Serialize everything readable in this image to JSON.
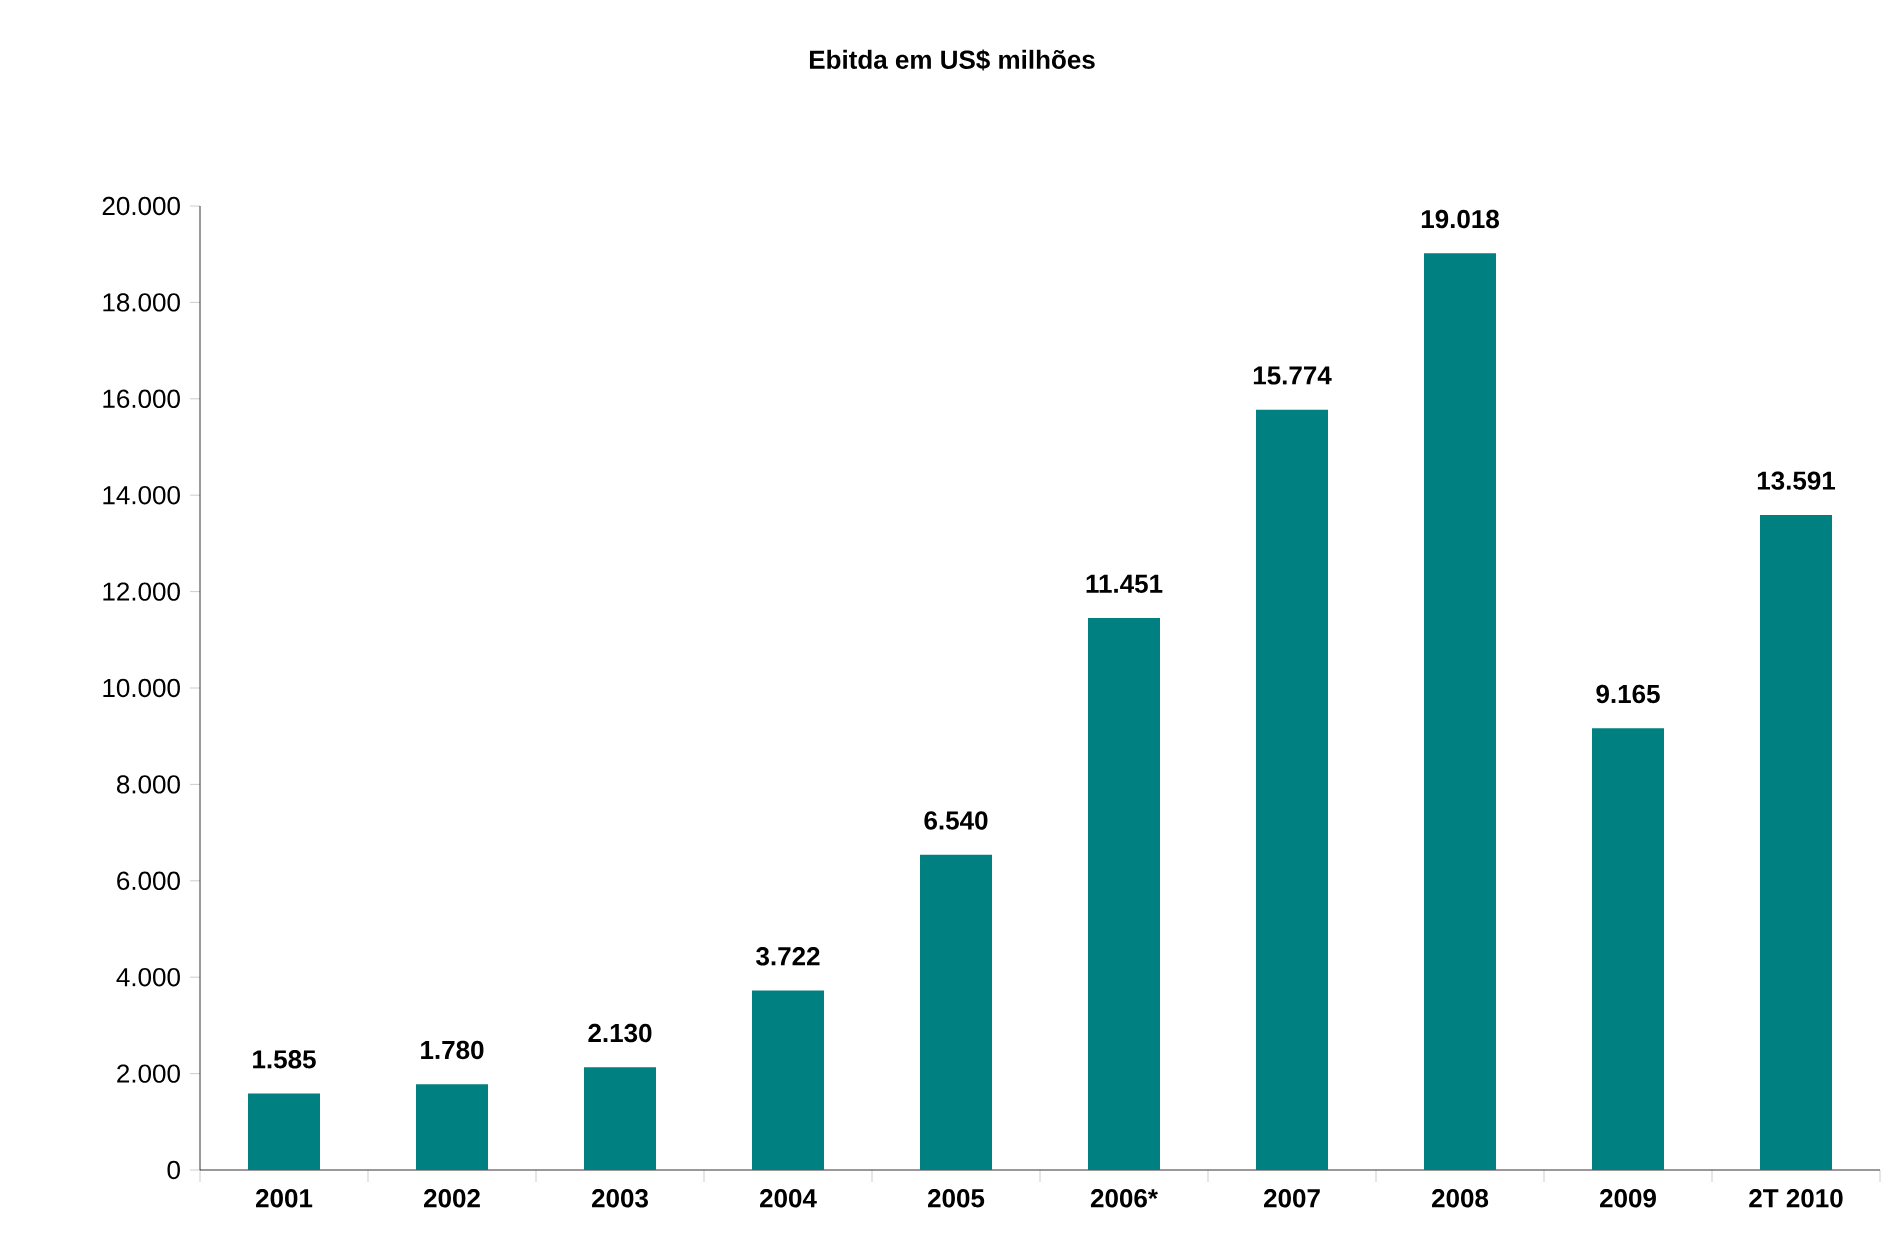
{
  "chart_data": {
    "type": "bar",
    "title": "Ebitda em US$ milhões",
    "categories": [
      "2001",
      "2002",
      "2003",
      "2004",
      "2005",
      "2006*",
      "2007",
      "2008",
      "2009",
      "2T 2010"
    ],
    "values": [
      1585,
      1780,
      2130,
      3722,
      6540,
      11451,
      15774,
      19018,
      9165,
      13591
    ],
    "value_labels": [
      "1.585",
      "1.780",
      "2.130",
      "3.722",
      "6.540",
      "11.451",
      "15.774",
      "19.018",
      "9.165",
      "13.591"
    ],
    "color": "#008080",
    "ylim": [
      0,
      20000
    ],
    "yticks": [
      {
        "value": 0,
        "label": "0"
      },
      {
        "value": 2000,
        "label": "2.000"
      },
      {
        "value": 4000,
        "label": "4.000"
      },
      {
        "value": 6000,
        "label": "6.000"
      },
      {
        "value": 8000,
        "label": "8.000"
      },
      {
        "value": 10000,
        "label": "10.000"
      },
      {
        "value": 12000,
        "label": "12.000"
      },
      {
        "value": 14000,
        "label": "14.000"
      },
      {
        "value": 16000,
        "label": "16.000"
      },
      {
        "value": 18000,
        "label": "18.000"
      },
      {
        "value": 20000,
        "label": "20.000"
      }
    ],
    "grid": false
  }
}
